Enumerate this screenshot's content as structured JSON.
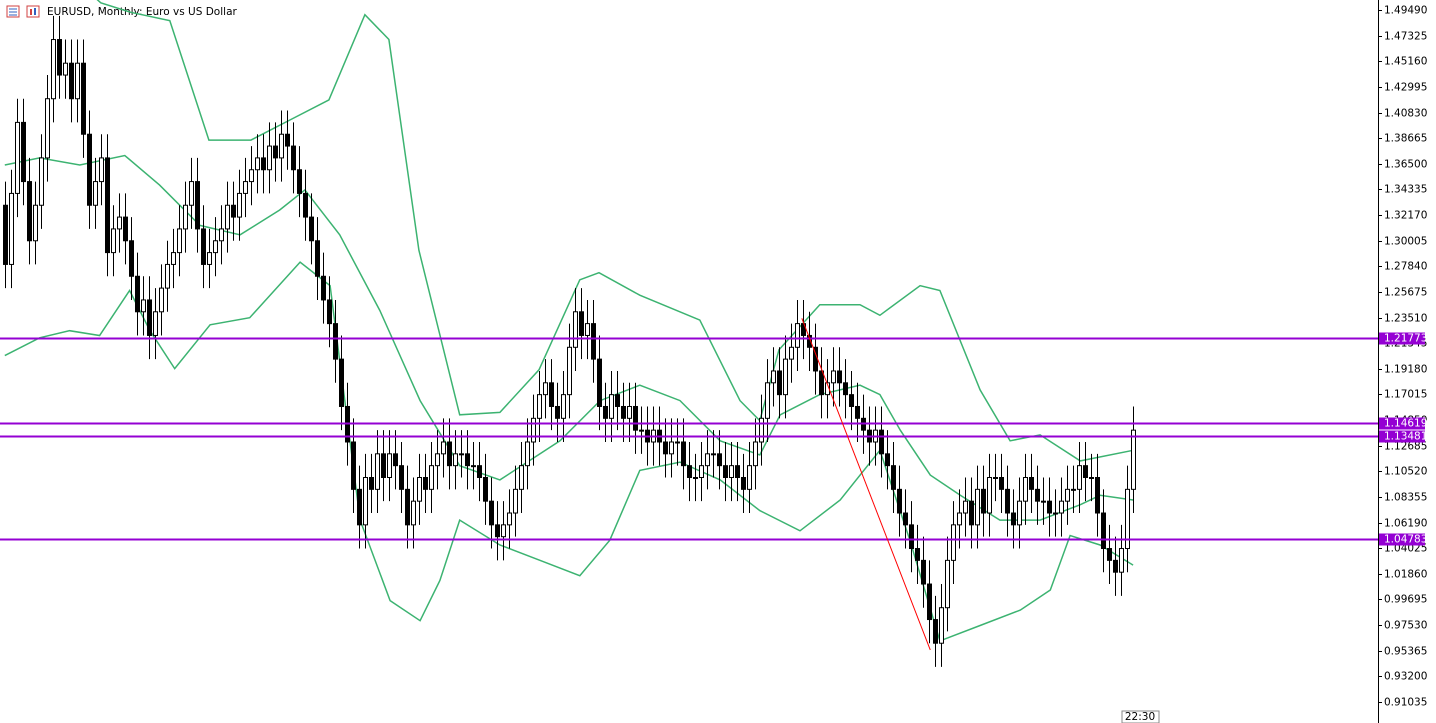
{
  "chart_data": {
    "type": "candlestick",
    "title": "EURUSD, Monthly:  Euro vs US Dollar",
    "time_label": "22:30",
    "xlim": [
      -0.8,
      228.8
    ],
    "ylim": [
      0.8926,
      1.5034
    ],
    "yticks": [
      {
        "value": 1.4949,
        "label": "1.49490"
      },
      1.47325,
      {
        "value": 1.4516,
        "label": "1.45160"
      },
      1.42995,
      {
        "value": 1.4083,
        "label": "1.40830"
      },
      1.38665,
      {
        "value": 1.365,
        "label": "1.36500"
      },
      1.34335,
      {
        "value": 1.3217,
        "label": "1.32170"
      },
      1.30005,
      {
        "value": 1.2784,
        "label": "1.27840"
      },
      1.25675,
      {
        "value": 1.2351,
        "label": "1.23510"
      },
      1.21345,
      {
        "value": 1.1918,
        "label": "1.19180"
      },
      1.17015,
      {
        "value": 1.1485,
        "label": "1.14850"
      },
      1.12685,
      {
        "value": 1.1052,
        "label": "1.10520"
      },
      1.08355,
      {
        "value": 1.0619,
        "label": "1.06190"
      },
      1.04025,
      {
        "value": 1.0186,
        "label": "1.01860"
      },
      0.99695,
      {
        "value": 0.9753,
        "label": "0.97530"
      },
      0.95365,
      {
        "value": 0.932,
        "label": "0.93200"
      },
      0.91035
    ],
    "up_color": "#ffffff",
    "down_color": "#000000",
    "open": [
      1.33,
      1.28,
      1.34,
      1.4,
      1.35,
      1.3,
      1.33,
      1.37,
      1.42,
      1.47,
      1.44,
      1.45,
      1.42,
      1.45,
      1.39,
      1.33,
      1.35,
      1.37,
      1.29,
      1.31,
      1.32,
      1.3,
      1.27,
      1.24,
      1.25,
      1.22,
      1.24,
      1.26,
      1.28,
      1.29,
      1.31,
      1.33,
      1.35,
      1.31,
      1.28,
      1.29,
      1.3,
      1.31,
      1.33,
      1.32,
      1.34,
      1.35,
      1.36,
      1.37,
      1.36,
      1.38,
      1.37,
      1.39,
      1.38,
      1.36,
      1.34,
      1.32,
      1.3,
      1.27,
      1.25,
      1.23,
      1.2,
      1.16,
      1.13,
      1.09,
      1.06,
      1.1,
      1.09,
      1.12,
      1.1,
      1.12,
      1.11,
      1.09,
      1.06,
      1.08,
      1.1,
      1.09,
      1.11,
      1.12,
      1.13,
      1.11,
      1.12,
      1.12,
      1.11,
      1.11,
      1.1,
      1.08,
      1.06,
      1.05,
      1.06,
      1.07,
      1.09,
      1.11,
      1.13,
      1.15,
      1.17,
      1.18,
      1.16,
      1.15,
      1.17,
      1.21,
      1.24,
      1.22,
      1.23,
      1.2,
      1.16,
      1.15,
      1.17,
      1.16,
      1.15,
      1.16,
      1.14,
      1.14,
      1.13,
      1.14,
      1.13,
      1.12,
      1.13,
      1.13,
      1.11,
      1.1,
      1.1,
      1.11,
      1.12,
      1.12,
      1.11,
      1.1,
      1.11,
      1.1,
      1.09,
      1.11,
      1.13,
      1.15,
      1.18,
      1.19,
      1.17,
      1.2,
      1.21,
      1.23,
      1.22,
      1.21,
      1.19,
      1.17,
      1.18,
      1.19,
      1.18,
      1.17,
      1.16,
      1.15,
      1.14,
      1.13,
      1.14,
      1.12,
      1.11,
      1.09,
      1.07,
      1.06,
      1.04,
      1.03,
      1.01,
      0.98,
      0.96,
      0.99,
      1.03,
      1.06,
      1.07,
      1.08,
      1.06,
      1.09,
      1.07,
      1.1,
      1.1,
      1.09,
      1.07,
      1.06,
      1.08,
      1.1,
      1.09,
      1.08,
      1.08,
      1.07,
      1.07,
      1.08,
      1.09,
      1.09,
      1.11,
      1.1,
      1.1,
      1.07,
      1.04,
      1.03,
      1.02,
      1.04,
      1.09
    ],
    "high": [
      1.35,
      1.36,
      1.42,
      1.42,
      1.37,
      1.35,
      1.39,
      1.44,
      1.49,
      1.49,
      1.47,
      1.47,
      1.47,
      1.47,
      1.41,
      1.37,
      1.39,
      1.39,
      1.33,
      1.34,
      1.34,
      1.32,
      1.29,
      1.27,
      1.27,
      1.26,
      1.28,
      1.3,
      1.31,
      1.33,
      1.35,
      1.37,
      1.37,
      1.33,
      1.31,
      1.32,
      1.33,
      1.35,
      1.35,
      1.36,
      1.37,
      1.38,
      1.39,
      1.39,
      1.4,
      1.4,
      1.41,
      1.41,
      1.4,
      1.38,
      1.36,
      1.34,
      1.32,
      1.29,
      1.27,
      1.25,
      1.22,
      1.18,
      1.15,
      1.11,
      1.12,
      1.12,
      1.14,
      1.14,
      1.14,
      1.14,
      1.13,
      1.11,
      1.1,
      1.12,
      1.12,
      1.13,
      1.14,
      1.15,
      1.15,
      1.14,
      1.14,
      1.14,
      1.13,
      1.13,
      1.12,
      1.1,
      1.08,
      1.08,
      1.09,
      1.11,
      1.13,
      1.15,
      1.17,
      1.19,
      1.2,
      1.2,
      1.18,
      1.19,
      1.23,
      1.26,
      1.26,
      1.25,
      1.25,
      1.22,
      1.18,
      1.19,
      1.19,
      1.18,
      1.18,
      1.18,
      1.16,
      1.16,
      1.16,
      1.16,
      1.15,
      1.15,
      1.15,
      1.15,
      1.13,
      1.12,
      1.13,
      1.14,
      1.14,
      1.14,
      1.13,
      1.13,
      1.13,
      1.12,
      1.13,
      1.15,
      1.17,
      1.2,
      1.21,
      1.21,
      1.22,
      1.23,
      1.25,
      1.25,
      1.24,
      1.23,
      1.21,
      1.2,
      1.21,
      1.21,
      1.2,
      1.19,
      1.18,
      1.17,
      1.16,
      1.16,
      1.16,
      1.14,
      1.13,
      1.11,
      1.09,
      1.08,
      1.06,
      1.05,
      1.03,
      1.0,
      1.01,
      1.05,
      1.08,
      1.09,
      1.1,
      1.1,
      1.11,
      1.11,
      1.12,
      1.12,
      1.12,
      1.11,
      1.09,
      1.1,
      1.12,
      1.12,
      1.11,
      1.1,
      1.1,
      1.09,
      1.1,
      1.11,
      1.11,
      1.13,
      1.13,
      1.12,
      1.12,
      1.09,
      1.06,
      1.05,
      1.06,
      1.11,
      1.16
    ],
    "low": [
      1.26,
      1.26,
      1.32,
      1.33,
      1.28,
      1.28,
      1.31,
      1.35,
      1.4,
      1.42,
      1.42,
      1.4,
      1.4,
      1.37,
      1.31,
      1.31,
      1.33,
      1.27,
      1.27,
      1.29,
      1.28,
      1.25,
      1.22,
      1.22,
      1.2,
      1.2,
      1.22,
      1.24,
      1.26,
      1.27,
      1.29,
      1.31,
      1.29,
      1.26,
      1.26,
      1.27,
      1.28,
      1.29,
      1.3,
      1.3,
      1.32,
      1.33,
      1.34,
      1.34,
      1.34,
      1.35,
      1.35,
      1.36,
      1.34,
      1.32,
      1.3,
      1.28,
      1.25,
      1.23,
      1.21,
      1.18,
      1.14,
      1.11,
      1.07,
      1.04,
      1.04,
      1.07,
      1.07,
      1.08,
      1.08,
      1.09,
      1.07,
      1.04,
      1.04,
      1.06,
      1.07,
      1.07,
      1.09,
      1.1,
      1.09,
      1.09,
      1.1,
      1.09,
      1.09,
      1.08,
      1.06,
      1.04,
      1.03,
      1.03,
      1.04,
      1.05,
      1.07,
      1.09,
      1.11,
      1.13,
      1.15,
      1.14,
      1.13,
      1.13,
      1.15,
      1.19,
      1.2,
      1.2,
      1.18,
      1.14,
      1.13,
      1.13,
      1.14,
      1.13,
      1.13,
      1.12,
      1.12,
      1.11,
      1.11,
      1.11,
      1.1,
      1.1,
      1.11,
      1.09,
      1.08,
      1.08,
      1.08,
      1.09,
      1.1,
      1.09,
      1.08,
      1.08,
      1.08,
      1.07,
      1.07,
      1.09,
      1.11,
      1.13,
      1.16,
      1.15,
      1.15,
      1.18,
      1.19,
      1.2,
      1.19,
      1.17,
      1.15,
      1.15,
      1.16,
      1.16,
      1.15,
      1.14,
      1.13,
      1.12,
      1.11,
      1.11,
      1.1,
      1.09,
      1.07,
      1.05,
      1.04,
      1.02,
      1.01,
      0.99,
      0.96,
      0.94,
      0.94,
      0.97,
      1.01,
      1.04,
      1.05,
      1.04,
      1.04,
      1.05,
      1.05,
      1.08,
      1.07,
      1.05,
      1.04,
      1.04,
      1.06,
      1.07,
      1.06,
      1.06,
      1.05,
      1.05,
      1.05,
      1.06,
      1.07,
      1.07,
      1.08,
      1.08,
      1.05,
      1.02,
      1.01,
      1.0,
      1.0,
      1.02,
      1.07
    ],
    "close": [
      1.28,
      1.34,
      1.4,
      1.35,
      1.3,
      1.33,
      1.37,
      1.42,
      1.47,
      1.44,
      1.45,
      1.42,
      1.45,
      1.39,
      1.33,
      1.35,
      1.37,
      1.29,
      1.31,
      1.32,
      1.3,
      1.27,
      1.24,
      1.25,
      1.22,
      1.24,
      1.26,
      1.28,
      1.29,
      1.31,
      1.33,
      1.35,
      1.31,
      1.28,
      1.29,
      1.3,
      1.31,
      1.33,
      1.32,
      1.34,
      1.35,
      1.36,
      1.37,
      1.36,
      1.38,
      1.37,
      1.39,
      1.38,
      1.36,
      1.34,
      1.32,
      1.3,
      1.27,
      1.25,
      1.23,
      1.2,
      1.16,
      1.13,
      1.09,
      1.06,
      1.1,
      1.09,
      1.12,
      1.1,
      1.12,
      1.11,
      1.09,
      1.06,
      1.08,
      1.1,
      1.09,
      1.11,
      1.12,
      1.13,
      1.11,
      1.12,
      1.12,
      1.11,
      1.11,
      1.1,
      1.08,
      1.06,
      1.05,
      1.06,
      1.07,
      1.09,
      1.11,
      1.13,
      1.15,
      1.17,
      1.18,
      1.16,
      1.15,
      1.17,
      1.21,
      1.24,
      1.22,
      1.23,
      1.2,
      1.16,
      1.15,
      1.17,
      1.16,
      1.15,
      1.16,
      1.14,
      1.14,
      1.13,
      1.14,
      1.13,
      1.12,
      1.13,
      1.13,
      1.11,
      1.1,
      1.1,
      1.11,
      1.12,
      1.12,
      1.11,
      1.1,
      1.11,
      1.1,
      1.09,
      1.11,
      1.13,
      1.15,
      1.18,
      1.19,
      1.17,
      1.2,
      1.21,
      1.23,
      1.22,
      1.21,
      1.19,
      1.17,
      1.18,
      1.19,
      1.18,
      1.17,
      1.16,
      1.15,
      1.14,
      1.13,
      1.14,
      1.12,
      1.11,
      1.09,
      1.07,
      1.06,
      1.04,
      1.03,
      1.01,
      0.98,
      0.96,
      0.99,
      1.03,
      1.06,
      1.07,
      1.08,
      1.06,
      1.09,
      1.07,
      1.1,
      1.1,
      1.09,
      1.07,
      1.06,
      1.08,
      1.1,
      1.09,
      1.08,
      1.08,
      1.07,
      1.07,
      1.08,
      1.09,
      1.09,
      1.11,
      1.1,
      1.1,
      1.07,
      1.04,
      1.03,
      1.02,
      1.04,
      1.09,
      1.14
    ],
    "bands": [
      {
        "color": "#3cb371",
        "x": [
          0,
          8,
          16,
          21,
          27.5,
          34,
          41,
          47.5,
          54,
          60,
          64,
          69,
          75.8,
          82.5,
          89,
          95.8,
          99,
          105.8,
          115.8,
          122.5,
          125.8,
          129,
          135.8,
          142.5,
          145.8,
          152.5,
          155.8,
          162.5,
          167.5,
          172.5,
          179.2,
          188
        ],
        "values": [
          1.56,
          1.537,
          1.501,
          1.493,
          1.486,
          1.385,
          1.385,
          1.402,
          1.419,
          1.491,
          1.47,
          1.292,
          1.153,
          1.155,
          1.191,
          1.267,
          1.273,
          1.254,
          1.233,
          1.165,
          1.148,
          1.208,
          1.246,
          1.246,
          1.237,
          1.262,
          1.258,
          1.174,
          1.131,
          1.136,
          1.114,
          1.123
        ]
      },
      {
        "color": "#3cb371",
        "x": [
          0,
          5.8,
          12.5,
          20,
          25.8,
          32.5,
          39.2,
          45.8,
          50,
          55.8,
          62.5,
          69.2,
          75.8,
          82.5,
          92.5,
          99.2,
          105.8,
          112.5,
          119.2,
          125.8,
          129.2,
          135.8,
          142.5,
          145.8,
          149.2,
          154.2,
          159.2,
          165.8,
          172.5,
          179.2,
          182.5,
          188
        ],
        "values": [
          1.364,
          1.37,
          1.364,
          1.372,
          1.347,
          1.313,
          1.305,
          1.326,
          1.343,
          1.305,
          1.241,
          1.165,
          1.11,
          1.098,
          1.131,
          1.165,
          1.178,
          1.165,
          1.131,
          1.119,
          1.153,
          1.17,
          1.178,
          1.17,
          1.14,
          1.102,
          1.085,
          1.064,
          1.064,
          1.077,
          1.085,
          1.081
        ]
      },
      {
        "color": "#3cb371",
        "x": [
          0,
          5.8,
          10.8,
          15.8,
          20.8,
          24.2,
          28.3,
          34.2,
          40.8,
          49.2,
          54.2,
          59.2,
          64.2,
          69.2,
          72.5,
          75.8,
          82.5,
          89.2,
          95.8,
          100.8,
          105.8,
          112.5,
          119.2,
          125.8,
          132.5,
          139.2,
          145.8,
          150.8,
          155.8,
          162.5,
          169.2,
          174.2,
          177.5,
          182.5,
          188
        ],
        "values": [
          1.203,
          1.218,
          1.224,
          1.22,
          1.258,
          1.224,
          1.192,
          1.229,
          1.235,
          1.282,
          1.262,
          1.064,
          0.996,
          0.979,
          1.013,
          1.064,
          1.043,
          1.03,
          1.017,
          1.047,
          1.106,
          1.113,
          1.098,
          1.072,
          1.055,
          1.081,
          1.123,
          1.047,
          0.962,
          0.975,
          0.988,
          1.005,
          1.051,
          1.043,
          1.026
        ]
      }
    ],
    "hlines": [
      {
        "value": 1.21773,
        "color": "#9400d3"
      },
      {
        "value": 1.14619,
        "color": "#9400d3"
      },
      {
        "value": 1.13481,
        "color": "#9400d3"
      },
      {
        "value": 1.04783,
        "color": "#9400d3"
      }
    ],
    "trendline": {
      "x": [
        132.8,
        154.2
      ],
      "values": [
        1.2345,
        0.9543
      ],
      "color": "#ff0000"
    }
  }
}
